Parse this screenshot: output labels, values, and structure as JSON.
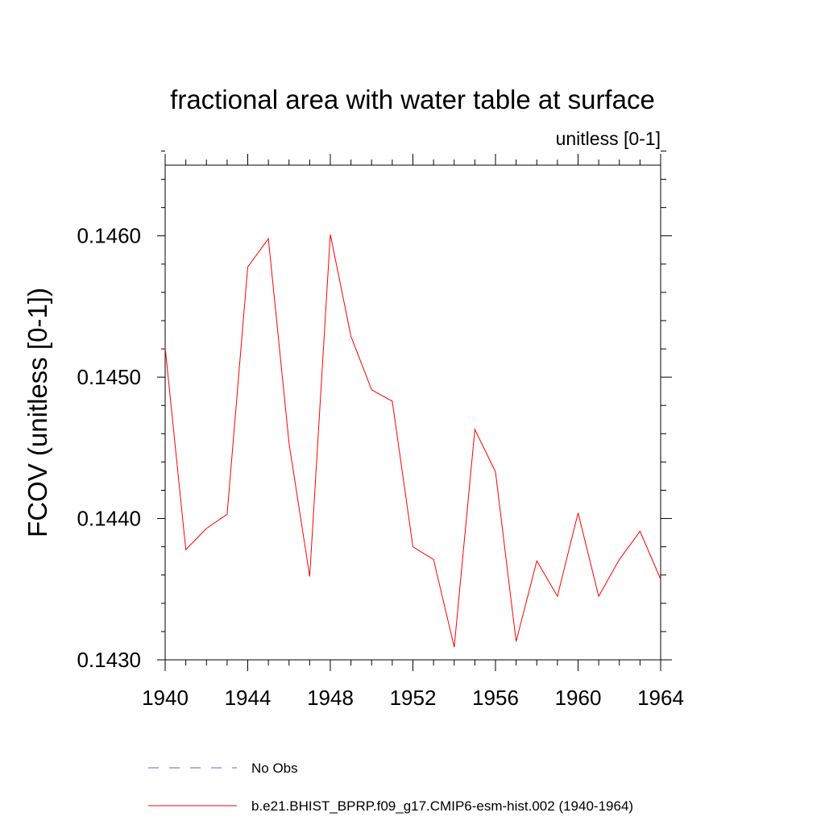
{
  "chart_data": {
    "type": "line",
    "title": "fractional area with water table at surface",
    "units_label": "unitless [0-1]",
    "ylabel": "FCOV  (unitless [0-1])",
    "xlabel": "",
    "xlim": [
      1940,
      1964
    ],
    "ylim": [
      0.143,
      0.1465
    ],
    "x_ticks": [
      1940,
      1944,
      1948,
      1952,
      1956,
      1960,
      1964
    ],
    "x_tick_labels": [
      "1940",
      "1944",
      "1948",
      "1952",
      "1956",
      "1960",
      "1964"
    ],
    "y_ticks": [
      0.143,
      0.144,
      0.145,
      0.146
    ],
    "y_tick_labels": [
      "0.1430",
      "0.1440",
      "0.1450",
      "0.1460"
    ],
    "grid": false,
    "x": [
      1940,
      1941,
      1942,
      1943,
      1944,
      1945,
      1946,
      1947,
      1948,
      1949,
      1950,
      1951,
      1952,
      1953,
      1954,
      1955,
      1956,
      1957,
      1958,
      1959,
      1960,
      1961,
      1962,
      1963,
      1964
    ],
    "series": [
      {
        "name": "b.e21.BHIST_BPRP.f09_g17.CMIP6-esm-hist.002 (1940-1964)",
        "color": "#ff0000",
        "dash": "solid",
        "values": [
          0.14521,
          0.14378,
          0.14393,
          0.14403,
          0.14578,
          0.14598,
          0.14453,
          0.14359,
          0.14601,
          0.14529,
          0.14491,
          0.14483,
          0.1438,
          0.14371,
          0.14309,
          0.14463,
          0.14433,
          0.14313,
          0.1437,
          0.14345,
          0.14404,
          0.14345,
          0.14371,
          0.14391,
          0.14357
        ]
      }
    ],
    "legend": [
      {
        "label": "No Obs",
        "color": "#6b5fd6",
        "dash": "dashed"
      },
      {
        "label": "b.e21.BHIST_BPRP.f09_g17.CMIP6-esm-hist.002 (1940-1964)",
        "color": "#ff0000",
        "dash": "solid"
      }
    ],
    "legend_position": "bottom"
  }
}
